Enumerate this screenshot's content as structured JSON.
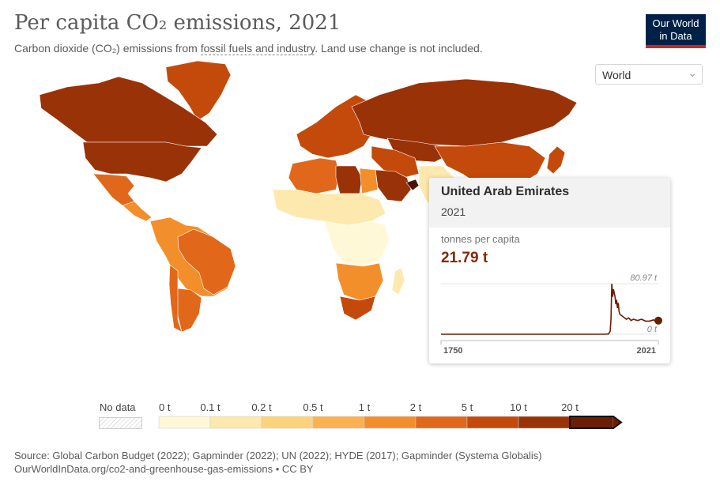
{
  "header": {
    "title": "Per capita CO₂ emissions, 2021",
    "subtitle_prefix": "Carbon dioxide (CO₂) emissions from ",
    "subtitle_link": "fossil fuels and industry",
    "subtitle_suffix": ". Land use change is not included."
  },
  "logo": {
    "line1": "Our World",
    "line2": "in Data",
    "bg": "#002147",
    "accent": "#ce261e"
  },
  "region_select": {
    "value": "World",
    "icon": "chevron-down-icon"
  },
  "tooltip": {
    "country": "United Arab Emirates",
    "year": "2021",
    "unit": "tonnes per capita",
    "value": "21.79 t",
    "sparkline": {
      "max_label": "80.97 t",
      "min_label": "0 t",
      "start_year": "1750",
      "end_year": "2021",
      "points": [
        [
          1750,
          0
        ],
        [
          1955,
          0
        ],
        [
          1959,
          0.5
        ],
        [
          1961,
          5
        ],
        [
          1962,
          25
        ],
        [
          1963,
          80.97
        ],
        [
          1964,
          60
        ],
        [
          1965,
          72
        ],
        [
          1966,
          66
        ],
        [
          1967,
          60
        ],
        [
          1968,
          48
        ],
        [
          1969,
          55
        ],
        [
          1970,
          42
        ],
        [
          1971,
          50
        ],
        [
          1972,
          36
        ],
        [
          1973,
          32
        ],
        [
          1975,
          30
        ],
        [
          1977,
          28
        ],
        [
          1979,
          26
        ],
        [
          1981,
          24
        ],
        [
          1984,
          26
        ],
        [
          1987,
          22
        ],
        [
          1990,
          24
        ],
        [
          1995,
          22
        ],
        [
          2000,
          24
        ],
        [
          2005,
          21
        ],
        [
          2010,
          21
        ],
        [
          2015,
          23
        ],
        [
          2018,
          20
        ],
        [
          2021,
          21.79
        ]
      ]
    }
  },
  "legend": {
    "no_data_label": "No data",
    "bins": [
      {
        "label": "0 t",
        "color": "#fef8d6"
      },
      {
        "label": "0.1 t",
        "color": "#fde9ad"
      },
      {
        "label": "0.2 t",
        "color": "#fcd27c"
      },
      {
        "label": "0.5 t",
        "color": "#fab152"
      },
      {
        "label": "1 t",
        "color": "#f38f2b"
      },
      {
        "label": "2 t",
        "color": "#e1681a"
      },
      {
        "label": "5 t",
        "color": "#c44a0c"
      },
      {
        "label": "10 t",
        "color": "#9a3208"
      },
      {
        "label": "20 t",
        "color": "#6b1e04"
      }
    ]
  },
  "footer": {
    "source": "Source: Global Carbon Budget (2022); Gapminder (2022); UN (2022); HYDE (2017); Gapminder (Systema Globalis)",
    "url": "OurWorldInData.org/co2-and-greenhouse-gas-emissions • CC BY"
  },
  "map_regions": [
    {
      "name": "Canada",
      "color": "#9a3208"
    },
    {
      "name": "United States",
      "color": "#9a3208"
    },
    {
      "name": "Greenland",
      "color": "#c44a0c"
    },
    {
      "name": "Mexico",
      "color": "#e1681a"
    },
    {
      "name": "Central America",
      "color": "#f38f2b"
    },
    {
      "name": "South America",
      "color": "#f38f2b"
    },
    {
      "name": "Brazil",
      "color": "#e1681a"
    },
    {
      "name": "Argentina",
      "color": "#e1681a"
    },
    {
      "name": "Chile",
      "color": "#e1681a"
    },
    {
      "name": "Europe",
      "color": "#c44a0c"
    },
    {
      "name": "Russia",
      "color": "#9a3208"
    },
    {
      "name": "Kazakhstan",
      "color": "#9a3208"
    },
    {
      "name": "North Africa",
      "color": "#e1681a"
    },
    {
      "name": "Libya",
      "color": "#9a3208"
    },
    {
      "name": "Sahel",
      "color": "#fde9ad"
    },
    {
      "name": "Central Africa",
      "color": "#fef8d6"
    },
    {
      "name": "Southern Africa",
      "color": "#f38f2b"
    },
    {
      "name": "South Africa",
      "color": "#c44a0c"
    },
    {
      "name": "Saudi Arabia",
      "color": "#9a3208"
    },
    {
      "name": "United Arab Emirates",
      "color": "#4a1402"
    },
    {
      "name": "Middle East",
      "color": "#c44a0c"
    },
    {
      "name": "Madagascar",
      "color": "#fde9ad"
    },
    {
      "name": "Japan",
      "color": "#c44a0c"
    }
  ]
}
